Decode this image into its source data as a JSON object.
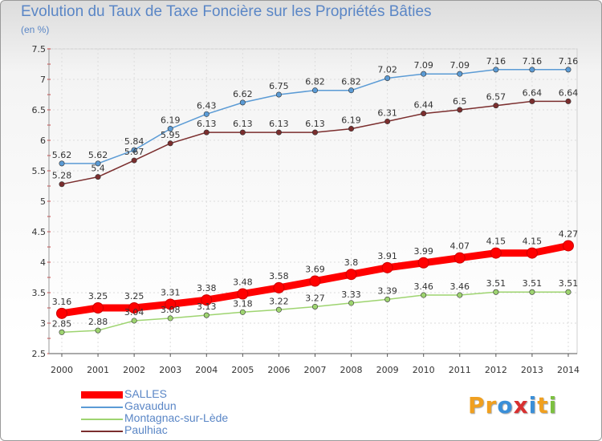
{
  "header": {
    "title": "Evolution du Taux de Taxe Foncière sur les Propriétés Bâties",
    "subtitle": "(en %)"
  },
  "logo": {
    "letters": [
      "P",
      "r",
      "o",
      "x",
      "i",
      "t",
      "i"
    ],
    "colors": [
      "#f0a020",
      "#f0a020",
      "#3a8fd8",
      "#d83030",
      "#3a8fd8",
      "#f0a020",
      "#7cc040"
    ]
  },
  "chart_data": {
    "type": "line",
    "categories": [
      "2000",
      "2001",
      "2002",
      "2003",
      "2004",
      "2005",
      "2006",
      "2007",
      "2008",
      "2009",
      "2010",
      "2011",
      "2012",
      "2013",
      "2014"
    ],
    "ylim": [
      2.5,
      7.5
    ],
    "yticks": [
      "2.5",
      "3",
      "3.5",
      "4",
      "4.5",
      "5",
      "5.5",
      "6",
      "6.5",
      "7",
      "7.5"
    ],
    "grid": true,
    "legend_position": "bottom-left",
    "series": [
      {
        "name": "SALLES",
        "color": "#ff0000",
        "values": [
          3.16,
          3.25,
          3.25,
          3.31,
          3.38,
          3.48,
          3.58,
          3.69,
          3.8,
          3.91,
          3.99,
          4.07,
          4.15,
          4.15,
          4.27
        ],
        "labels": [
          "3.16",
          "3.25",
          "3.25",
          "3.31",
          "3.38",
          "3.48",
          "3.58",
          "3.69",
          "3.8",
          "3.91",
          "3.99",
          "4.07",
          "4.15",
          "4.15",
          "4.27"
        ]
      },
      {
        "name": "Gavaudun",
        "color": "#5b9bd5",
        "values": [
          5.62,
          5.62,
          5.84,
          6.19,
          6.43,
          6.62,
          6.75,
          6.82,
          6.82,
          7.02,
          7.09,
          7.09,
          7.16,
          7.16,
          7.16
        ],
        "labels": [
          "5.62",
          "5.62",
          "5.84",
          "6.19",
          "6.43",
          "6.62",
          "6.75",
          "6.82",
          "6.82",
          "7.02",
          "7.09",
          "7.09",
          "7.16",
          "7.16",
          "7.16"
        ]
      },
      {
        "name": "Montagnac-sur-Lède",
        "color": "#9ed470",
        "values": [
          2.85,
          2.88,
          3.04,
          3.08,
          3.13,
          3.18,
          3.22,
          3.27,
          3.33,
          3.39,
          3.46,
          3.46,
          3.51,
          3.51,
          3.51
        ],
        "labels": [
          "2.85",
          "2.88",
          "3.04",
          "3.08",
          "3.13",
          "3.18",
          "3.22",
          "3.27",
          "3.33",
          "3.39",
          "3.46",
          "3.46",
          "3.51",
          "3.51",
          "3.51"
        ]
      },
      {
        "name": "Paulhiac",
        "color": "#7b2e2e",
        "values": [
          5.28,
          5.4,
          5.67,
          5.95,
          6.13,
          6.13,
          6.13,
          6.13,
          6.19,
          6.31,
          6.44,
          6.5,
          6.57,
          6.64,
          6.64
        ],
        "labels": [
          "5.28",
          "5.4",
          "5.67",
          "5.95",
          "6.13",
          "6.13",
          "6.13",
          "6.13",
          "6.19",
          "6.31",
          "6.44",
          "6.5",
          "6.57",
          "6.64",
          "6.64"
        ]
      }
    ]
  }
}
